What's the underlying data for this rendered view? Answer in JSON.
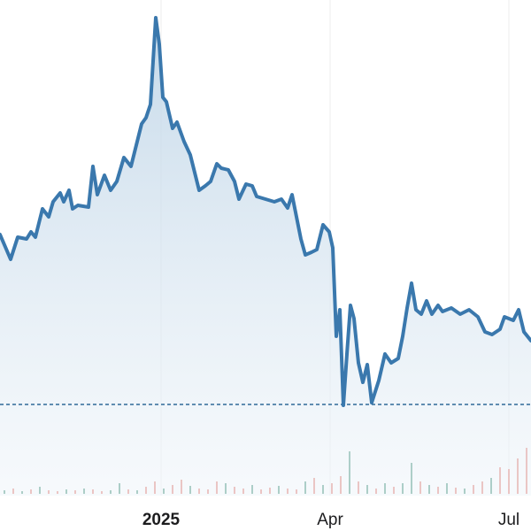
{
  "chart_data": {
    "type": "area",
    "x": [
      0,
      12,
      20,
      30,
      35,
      40,
      48,
      55,
      60,
      68,
      72,
      78,
      82,
      88,
      100,
      105,
      110,
      118,
      125,
      132,
      140,
      148,
      155,
      160,
      165,
      170,
      176,
      180,
      184,
      188,
      195,
      200,
      208,
      215,
      220,
      225,
      232,
      238,
      245,
      250,
      258,
      265,
      270,
      278,
      285,
      290,
      300,
      310,
      318,
      325,
      330,
      335,
      340,
      345,
      352,
      358,
      365,
      372,
      376,
      380,
      384,
      388,
      392,
      396,
      400,
      405,
      410,
      415,
      420,
      428,
      435,
      442,
      450,
      455,
      460,
      465,
      470,
      476,
      482,
      488,
      495,
      500,
      510,
      520,
      530,
      540,
      548,
      556,
      565,
      570,
      580,
      586,
      592,
      600
    ],
    "series": [
      {
        "color": "#3a78ad",
        "values": [
          335,
          307,
          332,
          330,
          338,
          332,
          364,
          355,
          372,
          382,
          372,
          385,
          364,
          368,
          366,
          412,
          380,
          402,
          385,
          395,
          422,
          412,
          440,
          460,
          467,
          482,
          580,
          550,
          490,
          485,
          455,
          462,
          440,
          425,
          405,
          385,
          390,
          395,
          415,
          410,
          408,
          395,
          375,
          392,
          390,
          378,
          375,
          372,
          375,
          365,
          380,
          355,
          330,
          312,
          315,
          318,
          346,
          338,
          320,
          220,
          250,
          142,
          200,
          255,
          240,
          190,
          168,
          188,
          145,
          170,
          200,
          190,
          195,
          220,
          252,
          280,
          250,
          245,
          260,
          245,
          255,
          248,
          252,
          245,
          250,
          242,
          225,
          222,
          228,
          242,
          238,
          250,
          225,
          215
        ]
      }
    ],
    "reference": 143,
    "volume": {
      "values": [
        4,
        6,
        3,
        5,
        8,
        4,
        3,
        5,
        4,
        6,
        5,
        3,
        4,
        12,
        5,
        4,
        8,
        14,
        6,
        10,
        16,
        9,
        6,
        5,
        14,
        12,
        8,
        6,
        10,
        5,
        7,
        9,
        6,
        5,
        14,
        18,
        10,
        12,
        20,
        48,
        14,
        10,
        6,
        12,
        8,
        12,
        35,
        14,
        10,
        8,
        12,
        7,
        6,
        10,
        14,
        18,
        30,
        28,
        40,
        52
      ],
      "colors": [
        "#6aa895",
        "#e8968e",
        "#6aa895",
        "#e8968e",
        "#6aa895",
        "#e8968e",
        "#e8968e",
        "#6aa895",
        "#e8968e",
        "#6aa895",
        "#e8968e",
        "#e8968e",
        "#6aa895",
        "#6aa895",
        "#e8968e",
        "#6aa895",
        "#e8968e",
        "#e8968e",
        "#6aa895",
        "#e8968e",
        "#e8968e",
        "#6aa895",
        "#e8968e",
        "#e8968e",
        "#e8968e",
        "#6aa895",
        "#e8968e",
        "#e8968e",
        "#6aa895",
        "#e8968e",
        "#e8968e",
        "#6aa895",
        "#e8968e",
        "#e8968e",
        "#6aa895",
        "#e8968e",
        "#6aa895",
        "#e8968e",
        "#e8968e",
        "#6aa895",
        "#e8968e",
        "#6aa895",
        "#e8968e",
        "#6aa895",
        "#e8968e",
        "#6aa895",
        "#6aa895",
        "#e8968e",
        "#6aa895",
        "#e8968e",
        "#6aa895",
        "#e8968e",
        "#6aa895",
        "#e8968e",
        "#e8968e",
        "#6aa895",
        "#e8968e",
        "#e8968e",
        "#e8968e",
        "#e8968e"
      ]
    },
    "xlim": [
      0,
      600
    ],
    "ylim": [
      0,
      600
    ],
    "xticks": [
      {
        "value": 182,
        "label": "2025"
      },
      {
        "value": 373,
        "label": "Apr"
      },
      {
        "value": 575,
        "label": "Jul"
      }
    ]
  }
}
